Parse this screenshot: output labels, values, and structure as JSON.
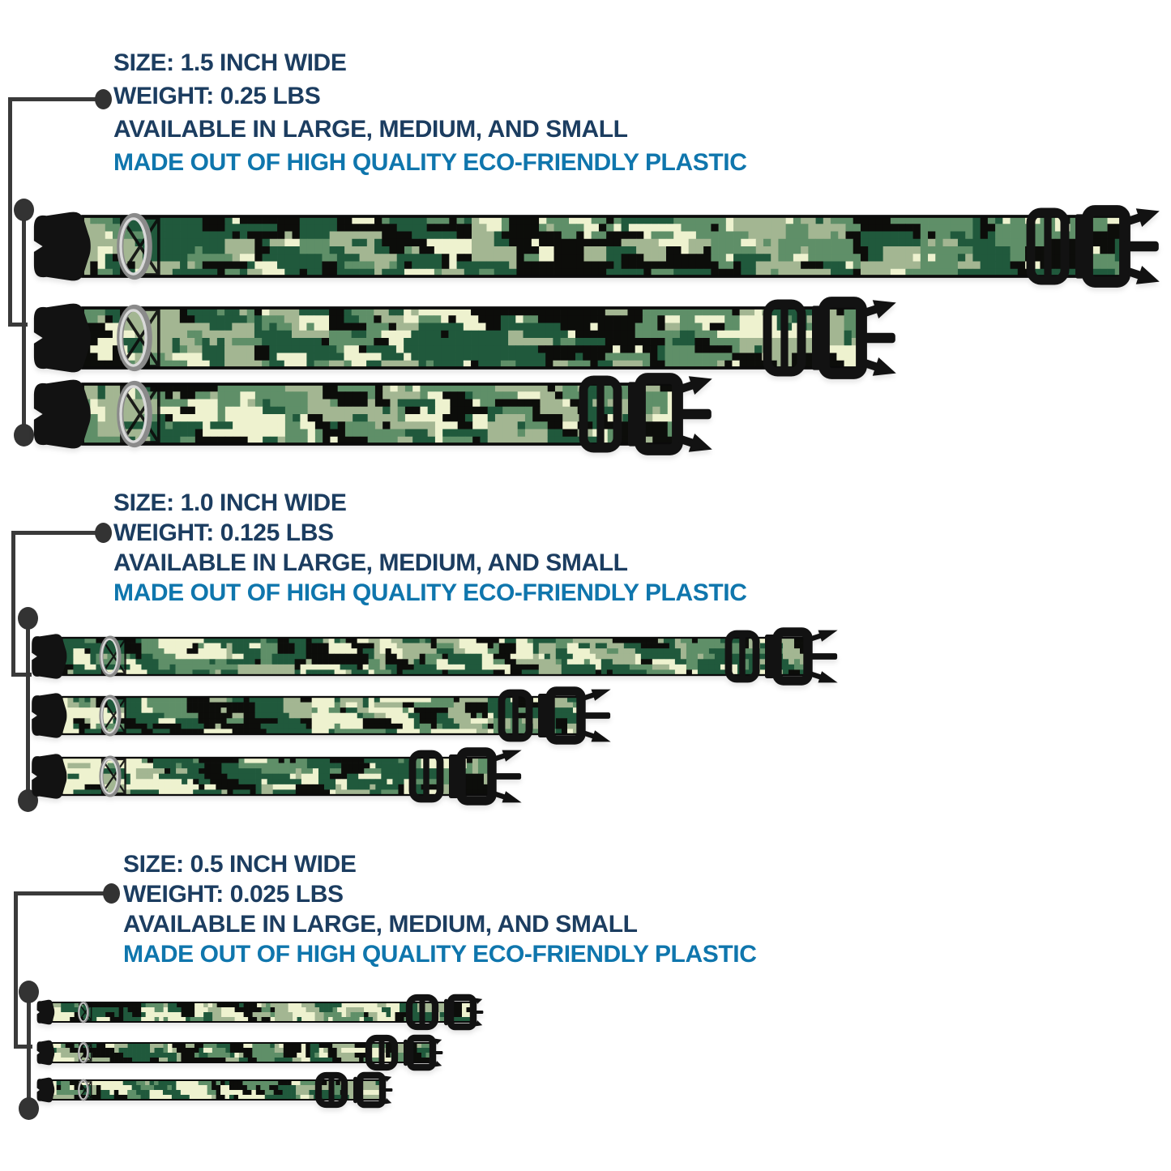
{
  "infographic": {
    "background": "#ffffff",
    "groups": [
      {
        "name": "collar-1.5-inch",
        "size_label": "SIZE: 1.5 INCH WIDE",
        "weight_label": "WEIGHT: 0.25 LBS",
        "availability_label": "AVAILABLE IN LARGE, MEDIUM, AND SMALL",
        "material_label": "MADE OUT OF HIGH QUALITY ECO-FRIENDLY PLASTIC",
        "variants": [
          "large",
          "medium",
          "small"
        ]
      },
      {
        "name": "collar-1.0-inch",
        "size_label": "SIZE: 1.0 INCH WIDE",
        "weight_label": "WEIGHT: 0.125 LBS",
        "availability_label": "AVAILABLE IN LARGE, MEDIUM, AND SMALL",
        "material_label": "MADE OUT OF HIGH QUALITY ECO-FRIENDLY PLASTIC",
        "variants": [
          "large",
          "medium",
          "small"
        ]
      },
      {
        "name": "collar-0.5-inch",
        "size_label": "SIZE: 0.5 INCH WIDE",
        "weight_label": "WEIGHT: 0.025 LBS",
        "availability_label": "AVAILABLE IN LARGE, MEDIUM, AND SMALL",
        "material_label": "MADE OUT OF HIGH QUALITY ECO-FRIENDLY PLASTIC",
        "variants": [
          "large",
          "medium",
          "small"
        ]
      }
    ]
  },
  "colors": {
    "heading_navy": "#1c3d60",
    "material_blue": "#0f76ad",
    "callout_line": "#3a3a3a",
    "callout_dot": "#333333",
    "buckle_black": "#121212",
    "dring_silver_dark": "#8a8a8a",
    "dring_silver_light": "#d9d9d9",
    "webbing_edge": "#0b0b0b",
    "camo_palette": [
      "#0c0d0a",
      "#20593c",
      "#5f8f68",
      "#a3b692",
      "#eef2cf"
    ]
  }
}
